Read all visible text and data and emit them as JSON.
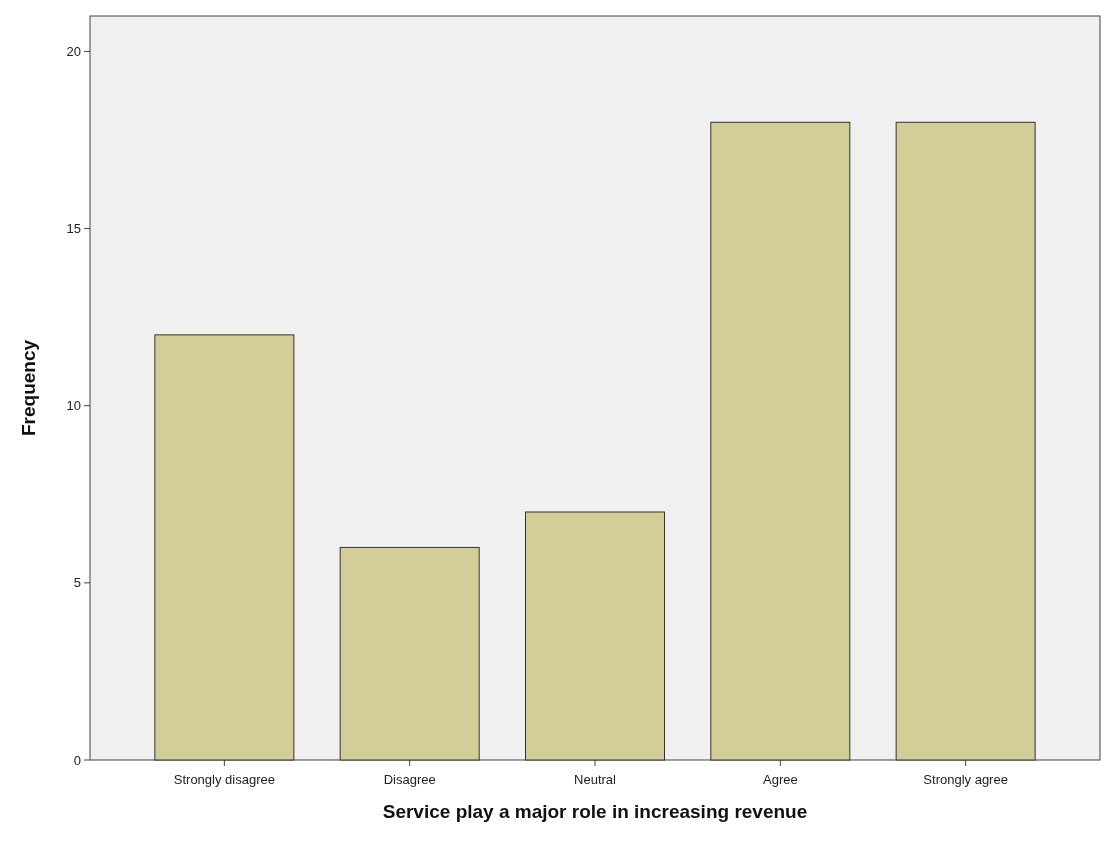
{
  "chart_data": {
    "type": "bar",
    "xlabel": "Service play a major role in increasing revenue",
    "ylabel": "Frequency",
    "categories": [
      "Strongly disagree",
      "Disagree",
      "Neutral",
      "Agree",
      "Strongly agree"
    ],
    "values": [
      12,
      6,
      7,
      18,
      18
    ],
    "color": "#d3ce97",
    "ylim": [
      0,
      21
    ],
    "yticks": [
      0,
      5,
      10,
      15,
      20
    ],
    "grid": false
  }
}
